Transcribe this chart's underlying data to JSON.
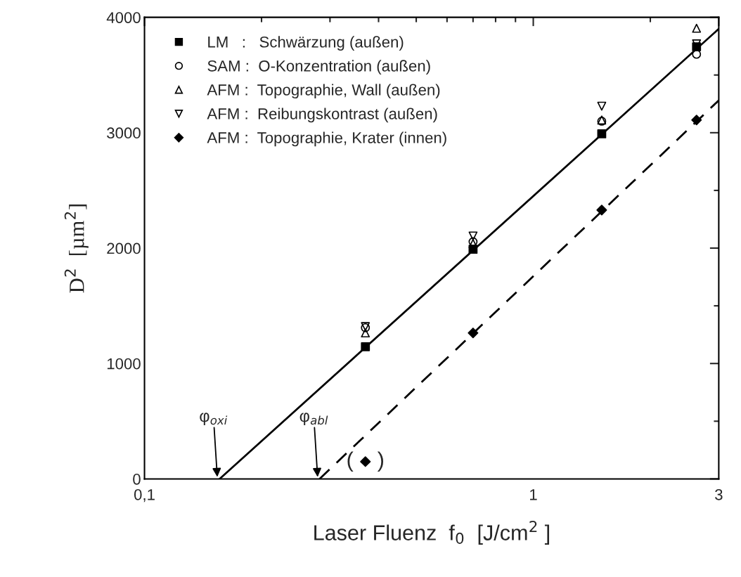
{
  "chart_data": {
    "type": "scatter",
    "xlabel": "Laser Fluenz  f$_{0}$  [J/cm$^{2}$ ]",
    "ylabel": "D$^{2}$  [µm$^{2}$]",
    "log": "x",
    "xlim": [
      0.1,
      3
    ],
    "xticks": [
      {
        "value": 0.1,
        "label": "0,1"
      },
      1,
      3
    ],
    "ylim": [
      0,
      4000
    ],
    "yticks": [
      0,
      1000,
      2000,
      3000,
      4000
    ],
    "legend": "top left",
    "grid": false,
    "series": [
      {
        "name": "LM   :   Schwärzung (außen)",
        "color": "#000000",
        "marker": "square",
        "x": [
          0.37,
          0.7,
          1.5,
          2.63
        ],
        "values": [
          1145,
          1990,
          2990,
          3745
        ]
      },
      {
        "name": "SAM :  O-Konzentration (außen)",
        "color": "#000000",
        "marker": "circle",
        "x": [
          0.37,
          0.7,
          1.5,
          2.63
        ],
        "values": [
          1310,
          2055,
          3100,
          3680
        ]
      },
      {
        "name": "AFM :  Topographie, Wall (außen)",
        "color": "#000000",
        "marker": "triangle",
        "x": [
          0.37,
          0.7,
          1.5,
          2.63
        ],
        "values": [
          1265,
          2040,
          3110,
          3905
        ]
      },
      {
        "name": "AFM :  Reibungskontrast (außen)",
        "color": "#000000",
        "marker": "triangle_down",
        "x": [
          0.37,
          0.7,
          1.5,
          2.63
        ],
        "values": [
          1320,
          2105,
          3230,
          3770
        ]
      },
      {
        "name": "AFM :  Topographie, Krater (innen)",
        "color": "#000000",
        "marker": "diamond",
        "x": [
          0.37,
          0.7,
          1.5,
          2.63
        ],
        "values": [
          150,
          1265,
          2330,
          3110
        ]
      },
      {
        "type": "line",
        "color": "#000000",
        "line_style": "solid",
        "marker": "none",
        "x": [
          0.156,
          3
        ],
        "values": [
          0,
          3900
        ]
      },
      {
        "type": "line",
        "color": "#000000",
        "line_style": "dashed",
        "marker": "none",
        "x": [
          0.282,
          3
        ],
        "values": [
          0,
          3280
        ]
      }
    ],
    "annotations": [
      {
        "text": "φ$_{oxi}$",
        "x": 0.154,
        "y": 0
      },
      {
        "text": "φ$_{abl}$",
        "x": 0.279,
        "y": 0
      },
      {
        "text": "(    )",
        "x": 0.37,
        "y": 150
      }
    ]
  }
}
